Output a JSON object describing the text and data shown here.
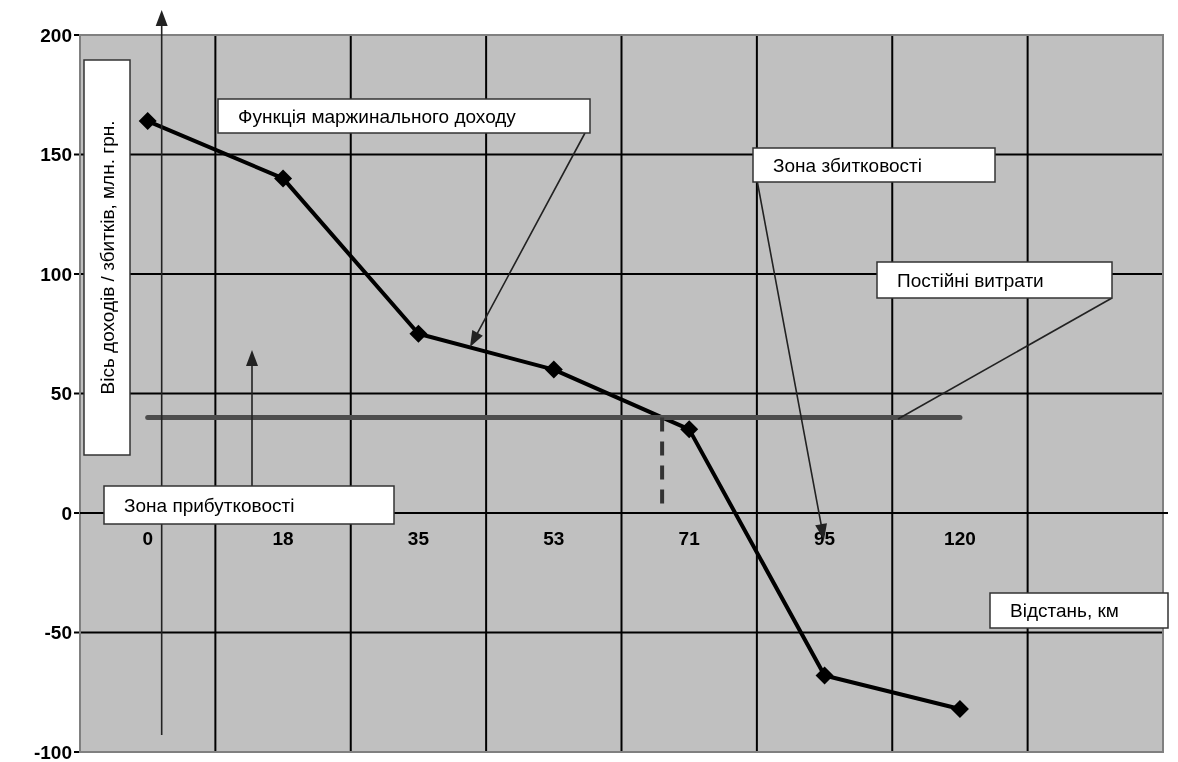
{
  "chart_data": {
    "type": "line",
    "xlabel": "Відстань, км",
    "ylabel": "Вісь доходів / збитків, млн. грн.",
    "categories": [
      "0",
      "18",
      "35",
      "53",
      "71",
      "95",
      "120",
      null
    ],
    "series": [
      {
        "color": "#000000",
        "marker": "diamond",
        "values": [
          164,
          140,
          75,
          60,
          35,
          -68,
          -82,
          null
        ]
      },
      {
        "color": "#4d4d4d",
        "marker": "none",
        "values": [
          40,
          40,
          40,
          40,
          40,
          40,
          40,
          null
        ]
      }
    ],
    "annotations": [
      "Функція маржинального доходу",
      "Зона збитковості",
      "Постійні витрати",
      "Зона прибутковості"
    ],
    "ylim": [
      -100,
      200
    ],
    "yticks": [
      -100,
      -50,
      0,
      50,
      100,
      150,
      200
    ],
    "grid": true,
    "legend": false
  }
}
